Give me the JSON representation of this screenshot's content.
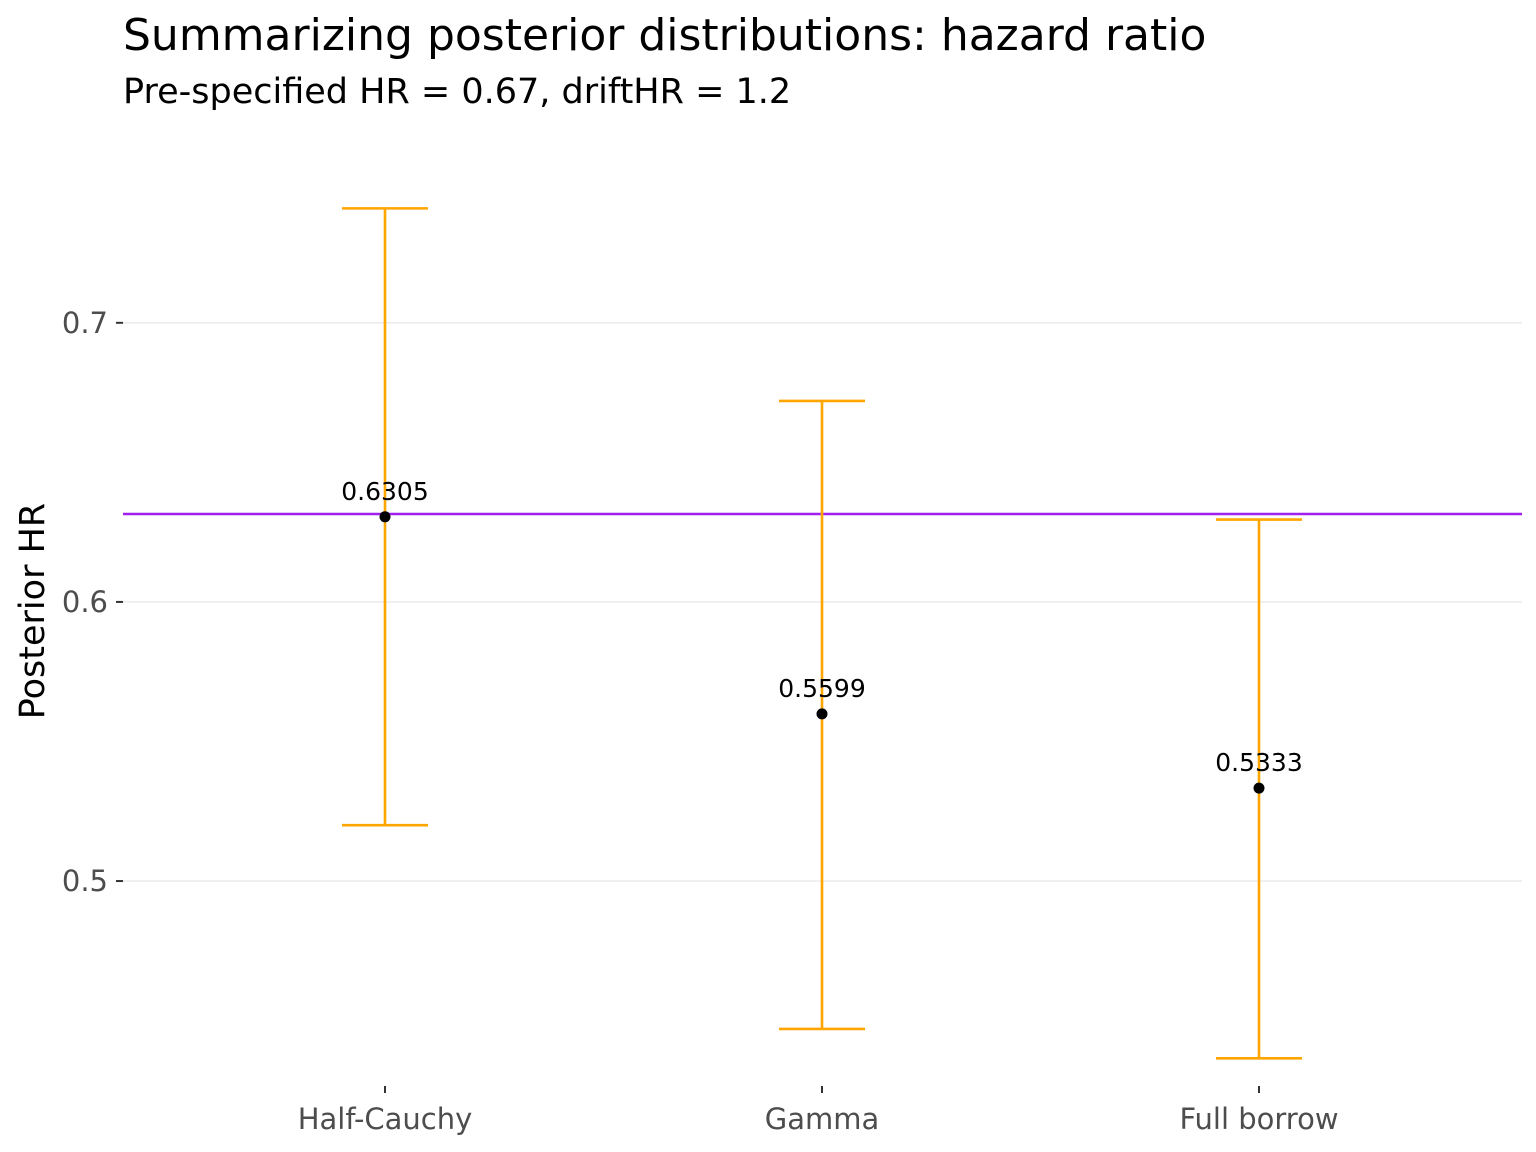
{
  "chart_data": {
    "type": "errorbar",
    "title": "Summarizing posterior distributions: hazard ratio",
    "subtitle": "Pre-specified HR = 0.67, driftHR = 1.2",
    "xlabel": "",
    "ylabel": "Posterior HR",
    "categories": [
      "Half-Cauchy",
      "Gamma",
      "Full borrow"
    ],
    "points": [
      {
        "category": "Half-Cauchy",
        "value": 0.6305,
        "label": "0.6305",
        "lower": 0.52,
        "upper": 0.741
      },
      {
        "category": "Gamma",
        "value": 0.5599,
        "label": "0.5599",
        "lower": 0.447,
        "upper": 0.672
      },
      {
        "category": "Full borrow",
        "value": 0.5333,
        "label": "0.5333",
        "lower": 0.4365,
        "upper": 0.6295
      }
    ],
    "reference_line": {
      "value": 0.6315
    },
    "y_ticks": [
      0.5,
      0.6,
      0.7
    ],
    "y_tick_labels": [
      "0.5",
      "0.6",
      "0.7"
    ],
    "ylim": [
      0.428,
      0.7655
    ],
    "grid": "horizontal major",
    "legend": "none",
    "colors": {
      "errorbar": "#FFA500",
      "reference_line": "#A020F0",
      "point": "#000000"
    }
  }
}
